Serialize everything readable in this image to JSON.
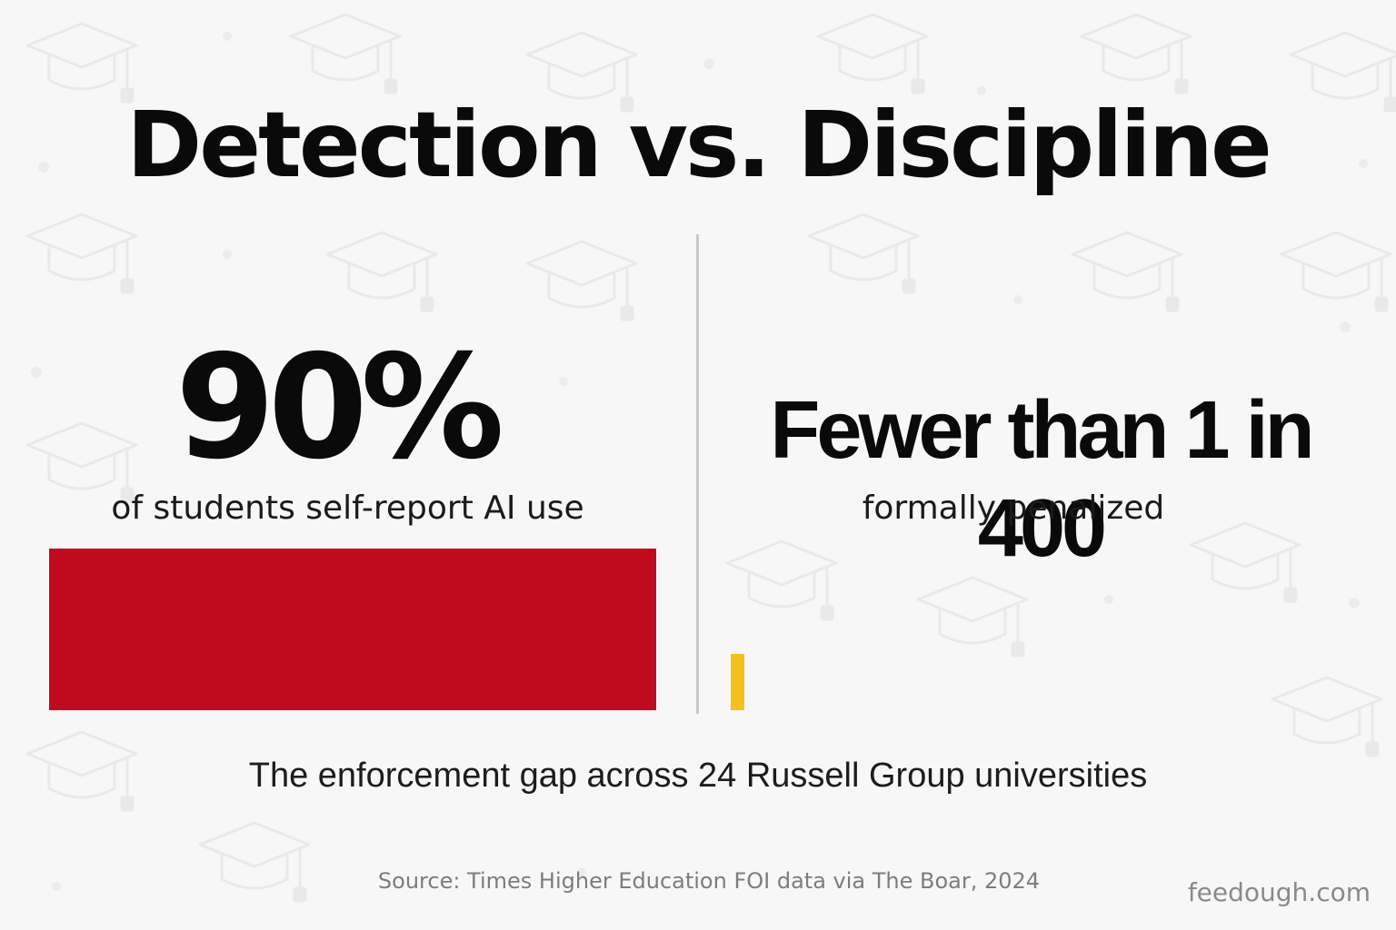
{
  "title": "Detection vs. Discipline",
  "left": {
    "value_text": "90%",
    "label": "of students self-report AI use"
  },
  "right": {
    "value_text": "Fewer than 1 in 400",
    "label": "formally penalized"
  },
  "caption": "The enforcement gap across 24 Russell Group universities",
  "source": "Source: Times Higher Education FOI data via The Boar, 2024",
  "brand": "feedough.com",
  "colors": {
    "background": "#f7f7f7",
    "left_bar": "#c10a1e",
    "right_bar": "#f2c21b",
    "text": "#0b0b0b",
    "divider": "#c8c8c8",
    "pattern_icon": "graduation-cap-icon"
  },
  "chart_data": {
    "type": "bar",
    "categories": [
      "of students self-report AI use",
      "formally penalized"
    ],
    "series": [
      {
        "values": [
          90,
          0.25
        ]
      }
    ],
    "value_labels": [
      "90%",
      "Fewer than 1 in 400"
    ],
    "unit": "%",
    "ylim": [
      0,
      90
    ],
    "grid": false,
    "legend": "none"
  }
}
